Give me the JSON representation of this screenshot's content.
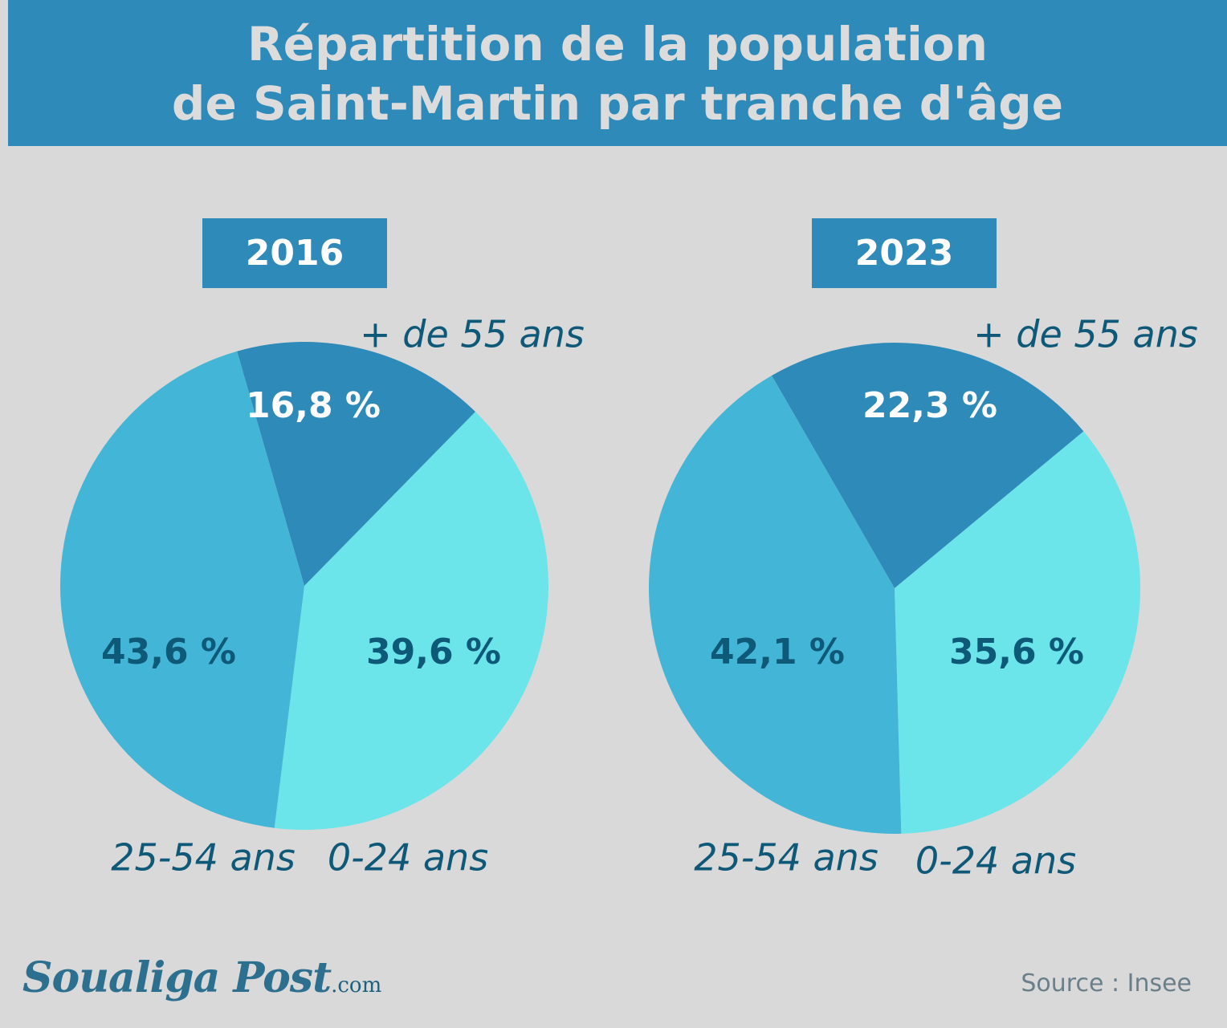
{
  "title": {
    "line1": "Répartition de la population",
    "line2": "de Saint-Martin par tranche d'âge"
  },
  "colors": {
    "header_bg": "#2e8ab9",
    "background": "#d9d9d9",
    "slice_55_plus": "#2e8ab9",
    "slice_0_24": "#6be4ea",
    "slice_25_54": "#43b5d6",
    "pct_white": "#ffffff",
    "pct_dark": "#0e5878"
  },
  "chart_data": [
    {
      "type": "pie",
      "title": "2016",
      "categories": [
        "+ de 55 ans",
        "0-24 ans",
        "25-54 ans"
      ],
      "values": [
        16.8,
        39.6,
        43.6
      ],
      "value_labels": [
        "16,8 %",
        "39,6 %",
        "43,6 %"
      ]
    },
    {
      "type": "pie",
      "title": "2023",
      "categories": [
        "+ de 55 ans",
        "0-24 ans",
        "25-54 ans"
      ],
      "values": [
        22.3,
        35.6,
        42.1
      ],
      "value_labels": [
        "22,3 %",
        "35,6 %",
        "42,1 %"
      ]
    }
  ],
  "footer": {
    "logo_main": "Soualiga Post",
    "logo_suffix": ".com",
    "source": "Source : Insee"
  }
}
